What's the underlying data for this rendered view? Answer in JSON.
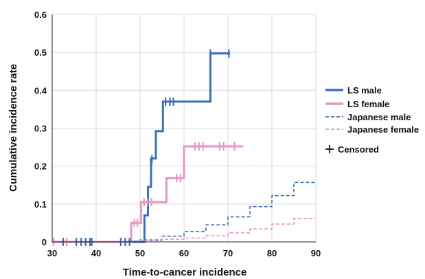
{
  "chart_data": {
    "type": "line",
    "step": true,
    "title": "",
    "xlabel": "Time-to-cancer incidence",
    "ylabel": "Cumulative incidence rate",
    "xlim": [
      30,
      90
    ],
    "ylim": [
      0,
      0.6
    ],
    "x_ticks": [
      "30",
      "40",
      "50",
      "60",
      "70",
      "80",
      "90"
    ],
    "y_ticks": [
      "0",
      "0.1",
      "0.2",
      "0.3",
      "0.4",
      "0.5",
      "0.6"
    ],
    "grid": true,
    "legend_position": "right",
    "censored_label": "Censored",
    "series": [
      {
        "name": "LS male",
        "color": "#3d6fb6",
        "style": "solid",
        "points": [
          [
            30,
            0
          ],
          [
            51,
            0
          ],
          [
            51,
            0.07
          ],
          [
            51.8,
            0.07
          ],
          [
            51.8,
            0.145
          ],
          [
            52.5,
            0.145
          ],
          [
            52.5,
            0.22
          ],
          [
            53.6,
            0.22
          ],
          [
            53.6,
            0.292
          ],
          [
            55.2,
            0.292
          ],
          [
            55.2,
            0.37
          ],
          [
            66,
            0.37
          ],
          [
            66,
            0.497
          ],
          [
            70.5,
            0.497
          ]
        ],
        "censored": [
          [
            32.5,
            0
          ],
          [
            35.5,
            0
          ],
          [
            36.6,
            0
          ],
          [
            37.6,
            0
          ],
          [
            38.6,
            0
          ],
          [
            39,
            0
          ],
          [
            45.6,
            0
          ],
          [
            46.6,
            0
          ],
          [
            47.6,
            0
          ],
          [
            52.7,
            0.218
          ],
          [
            55.8,
            0.37
          ],
          [
            56.8,
            0.37
          ],
          [
            57.6,
            0.37
          ],
          [
            66,
            0.497
          ],
          [
            70.2,
            0.497
          ]
        ]
      },
      {
        "name": "LS female",
        "color": "#e695c4",
        "style": "solid",
        "points": [
          [
            30,
            0
          ],
          [
            48,
            0
          ],
          [
            48,
            0.05
          ],
          [
            50.2,
            0.05
          ],
          [
            50.2,
            0.105
          ],
          [
            56,
            0.105
          ],
          [
            56,
            0.168
          ],
          [
            60,
            0.168
          ],
          [
            60,
            0.252
          ],
          [
            73.5,
            0.252
          ]
        ],
        "censored": [
          [
            30.3,
            0
          ],
          [
            33.3,
            0
          ],
          [
            48.7,
            0.05
          ],
          [
            49.4,
            0.05
          ],
          [
            50.9,
            0.105
          ],
          [
            51.7,
            0.105
          ],
          [
            52.6,
            0.105
          ],
          [
            58.3,
            0.168
          ],
          [
            59.2,
            0.168
          ],
          [
            62.5,
            0.252
          ],
          [
            63.4,
            0.252
          ],
          [
            64.3,
            0.252
          ],
          [
            68.1,
            0.252
          ],
          [
            69,
            0.252
          ],
          [
            71.5,
            0.252
          ]
        ]
      },
      {
        "name": "Japanese male",
        "color": "#3d6fb6",
        "style": "dashed",
        "points": [
          [
            30,
            0
          ],
          [
            47,
            0
          ],
          [
            47,
            0.002
          ],
          [
            50,
            0.002
          ],
          [
            50,
            0.005
          ],
          [
            55,
            0.005
          ],
          [
            55,
            0.015
          ],
          [
            60,
            0.015
          ],
          [
            60,
            0.027
          ],
          [
            65,
            0.027
          ],
          [
            65,
            0.045
          ],
          [
            70,
            0.045
          ],
          [
            70,
            0.066
          ],
          [
            75,
            0.066
          ],
          [
            75,
            0.093
          ],
          [
            80,
            0.093
          ],
          [
            80,
            0.122
          ],
          [
            85,
            0.122
          ],
          [
            85,
            0.157
          ],
          [
            90,
            0.157
          ]
        ],
        "censored": []
      },
      {
        "name": "Japanese female",
        "color": "#e695c4",
        "style": "dashed",
        "points": [
          [
            30,
            0
          ],
          [
            50,
            0
          ],
          [
            50,
            0.003
          ],
          [
            55,
            0.003
          ],
          [
            55,
            0.007
          ],
          [
            60,
            0.007
          ],
          [
            60,
            0.01
          ],
          [
            65,
            0.01
          ],
          [
            65,
            0.016
          ],
          [
            70,
            0.016
          ],
          [
            70,
            0.024
          ],
          [
            75,
            0.024
          ],
          [
            75,
            0.034
          ],
          [
            80,
            0.034
          ],
          [
            80,
            0.047
          ],
          [
            85,
            0.047
          ],
          [
            85,
            0.062
          ],
          [
            90,
            0.062
          ]
        ],
        "censored": []
      }
    ]
  }
}
